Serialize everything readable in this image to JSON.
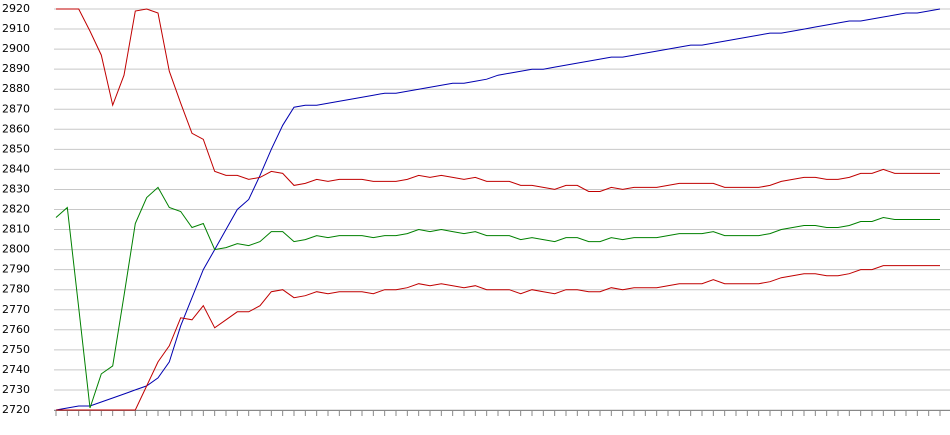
{
  "chart_data": {
    "type": "line",
    "categories": [
      null,
      null,
      null,
      null,
      null,
      null,
      null,
      null,
      null,
      null,
      null,
      null,
      null,
      null,
      null,
      null,
      null,
      null,
      null,
      null,
      null,
      null,
      null,
      null,
      null,
      null,
      null,
      null,
      null,
      null,
      null,
      null,
      null,
      null,
      null,
      null,
      null,
      null,
      null,
      null,
      null,
      null,
      null,
      null,
      null,
      null,
      null,
      null,
      null,
      null,
      null,
      null,
      null,
      null,
      null,
      null,
      null,
      null,
      null,
      null,
      null,
      null,
      null,
      null,
      null,
      null,
      null,
      null,
      null,
      null,
      null,
      null,
      null,
      null,
      null,
      null,
      null,
      null,
      null
    ],
    "series": [
      {
        "color": "#0000b0",
        "values": [
          2720,
          2721,
          2722,
          2722,
          2724,
          2726,
          2728,
          2730,
          2732,
          2736,
          2744,
          2762,
          2776,
          2790,
          2800,
          2810,
          2820,
          2825,
          2837,
          2850,
          2862,
          2871,
          2872,
          2872,
          2873,
          2874,
          2875,
          2876,
          2877,
          2878,
          2878,
          2879,
          2880,
          2881,
          2882,
          2883,
          2883,
          2884,
          2885,
          2887,
          2888,
          2889,
          2890,
          2890,
          2891,
          2892,
          2893,
          2894,
          2895,
          2896,
          2896,
          2897,
          2898,
          2899,
          2900,
          2901,
          2902,
          2902,
          2903,
          2904,
          2905,
          2906,
          2907,
          2908,
          2908,
          2909,
          2910,
          2911,
          2912,
          2913,
          2914,
          2914,
          2915,
          2916,
          2917,
          2918,
          2918,
          2919,
          2920
        ]
      },
      {
        "color": "#c00000",
        "values": [
          2920,
          2920,
          2920,
          2909,
          2897,
          2872,
          2887,
          2919,
          2920,
          2918,
          2889,
          2873,
          2858,
          2855,
          2839,
          2837,
          2837,
          2835,
          2836,
          2839,
          2838,
          2832,
          2833,
          2835,
          2834,
          2835,
          2835,
          2835,
          2834,
          2834,
          2834,
          2835,
          2837,
          2836,
          2837,
          2836,
          2835,
          2836,
          2834,
          2834,
          2834,
          2832,
          2832,
          2831,
          2830,
          2832,
          2832,
          2829,
          2829,
          2831,
          2830,
          2831,
          2831,
          2831,
          2832,
          2833,
          2833,
          2833,
          2833,
          2831,
          2831,
          2831,
          2831,
          2832,
          2834,
          2835,
          2836,
          2836,
          2835,
          2835,
          2836,
          2838,
          2838,
          2840,
          2838,
          2838,
          2838,
          2838,
          2838
        ]
      },
      {
        "color": "#008000",
        "values": [
          2816,
          2821,
          2771,
          2721,
          2738,
          2742,
          2777,
          2813,
          2826,
          2831,
          2821,
          2819,
          2811,
          2813,
          2800,
          2801,
          2803,
          2802,
          2804,
          2809,
          2809,
          2804,
          2805,
          2807,
          2806,
          2807,
          2807,
          2807,
          2806,
          2807,
          2807,
          2808,
          2810,
          2809,
          2810,
          2809,
          2808,
          2809,
          2807,
          2807,
          2807,
          2805,
          2806,
          2805,
          2804,
          2806,
          2806,
          2804,
          2804,
          2806,
          2805,
          2806,
          2806,
          2806,
          2807,
          2808,
          2808,
          2808,
          2809,
          2807,
          2807,
          2807,
          2807,
          2808,
          2810,
          2811,
          2812,
          2812,
          2811,
          2811,
          2812,
          2814,
          2814,
          2816,
          2815,
          2815,
          2815,
          2815,
          2815
        ]
      },
      {
        "color": "#c00000",
        "values": [
          2720,
          2720,
          2720,
          2720,
          2720,
          2720,
          2720,
          2720,
          2732,
          2744,
          2752,
          2766,
          2765,
          2772,
          2761,
          2765,
          2769,
          2769,
          2772,
          2779,
          2780,
          2776,
          2777,
          2779,
          2778,
          2779,
          2779,
          2779,
          2778,
          2780,
          2780,
          2781,
          2783,
          2782,
          2783,
          2782,
          2781,
          2782,
          2780,
          2780,
          2780,
          2778,
          2780,
          2779,
          2778,
          2780,
          2780,
          2779,
          2779,
          2781,
          2780,
          2781,
          2781,
          2781,
          2782,
          2783,
          2783,
          2783,
          2785,
          2783,
          2783,
          2783,
          2783,
          2784,
          2786,
          2787,
          2788,
          2788,
          2787,
          2787,
          2788,
          2790,
          2790,
          2792,
          2792,
          2792,
          2792,
          2792,
          2792
        ]
      }
    ],
    "ylim": [
      2720,
      2920
    ],
    "yticks": [
      2720,
      2730,
      2740,
      2750,
      2760,
      2770,
      2780,
      2790,
      2800,
      2810,
      2820,
      2830,
      2840,
      2850,
      2860,
      2870,
      2880,
      2890,
      2900,
      2910,
      2920
    ],
    "grid": true
  }
}
